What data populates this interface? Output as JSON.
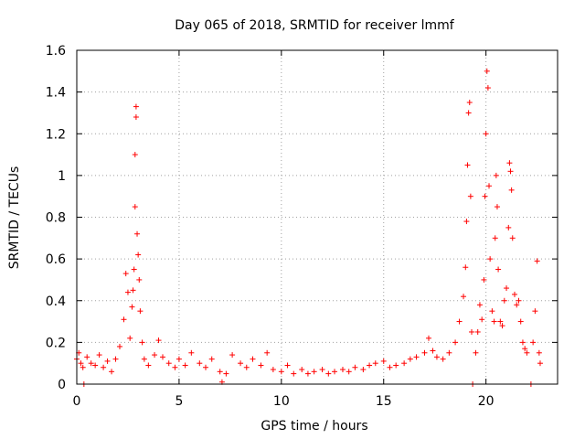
{
  "chart_data": {
    "type": "scatter",
    "title": "Day 065 of 2018, SRMTID for receiver lmmf",
    "xlabel": "GPS time / hours",
    "ylabel": "SRMTID / TECUs",
    "xlim": [
      0,
      23.5
    ],
    "ylim": [
      0,
      1.6
    ],
    "x_ticks": [
      0,
      5,
      10,
      15,
      20
    ],
    "x_tick_labels": [
      "0",
      "5",
      "10",
      "15",
      "20"
    ],
    "y_ticks": [
      0,
      0.2,
      0.4,
      0.6,
      0.8,
      1.0,
      1.2,
      1.4,
      1.6
    ],
    "y_tick_labels": [
      "0",
      "0.2",
      "0.4",
      "0.6",
      "0.8",
      "1",
      "1.2",
      "1.4",
      "1.6"
    ],
    "grid": true,
    "marker": "+",
    "marker_color": "#ff0000",
    "series": [
      {
        "name": "SRMTID",
        "points": [
          [
            0.0,
            0.12
          ],
          [
            0.1,
            0.15
          ],
          [
            0.2,
            0.1
          ],
          [
            0.3,
            0.08
          ],
          [
            0.35,
            0.0
          ],
          [
            0.5,
            0.13
          ],
          [
            0.7,
            0.1
          ],
          [
            0.9,
            0.09
          ],
          [
            1.1,
            0.14
          ],
          [
            1.3,
            0.08
          ],
          [
            1.5,
            0.11
          ],
          [
            1.7,
            0.06
          ],
          [
            1.9,
            0.12
          ],
          [
            2.1,
            0.18
          ],
          [
            2.3,
            0.31
          ],
          [
            2.4,
            0.53
          ],
          [
            2.5,
            0.44
          ],
          [
            2.6,
            0.22
          ],
          [
            2.7,
            0.37
          ],
          [
            2.75,
            0.45
          ],
          [
            2.8,
            0.55
          ],
          [
            2.85,
            0.85
          ],
          [
            2.85,
            1.1
          ],
          [
            2.9,
            1.28
          ],
          [
            2.9,
            1.33
          ],
          [
            2.95,
            0.72
          ],
          [
            3.0,
            0.62
          ],
          [
            3.05,
            0.5
          ],
          [
            3.1,
            0.35
          ],
          [
            3.2,
            0.2
          ],
          [
            3.3,
            0.12
          ],
          [
            3.5,
            0.09
          ],
          [
            3.8,
            0.14
          ],
          [
            4.0,
            0.21
          ],
          [
            4.2,
            0.13
          ],
          [
            4.5,
            0.1
          ],
          [
            4.8,
            0.08
          ],
          [
            5.0,
            0.12
          ],
          [
            5.3,
            0.09
          ],
          [
            5.6,
            0.15
          ],
          [
            6.0,
            0.1
          ],
          [
            6.3,
            0.08
          ],
          [
            6.6,
            0.12
          ],
          [
            7.0,
            0.06
          ],
          [
            7.1,
            0.01
          ],
          [
            7.3,
            0.05
          ],
          [
            7.6,
            0.14
          ],
          [
            8.0,
            0.1
          ],
          [
            8.3,
            0.08
          ],
          [
            8.6,
            0.12
          ],
          [
            9.0,
            0.09
          ],
          [
            9.3,
            0.15
          ],
          [
            9.6,
            0.07
          ],
          [
            10.0,
            0.06
          ],
          [
            10.3,
            0.09
          ],
          [
            10.6,
            0.05
          ],
          [
            11.0,
            0.07
          ],
          [
            11.3,
            0.05
          ],
          [
            11.6,
            0.06
          ],
          [
            12.0,
            0.07
          ],
          [
            12.3,
            0.05
          ],
          [
            12.6,
            0.06
          ],
          [
            13.0,
            0.07
          ],
          [
            13.3,
            0.06
          ],
          [
            13.6,
            0.08
          ],
          [
            14.0,
            0.07
          ],
          [
            14.3,
            0.09
          ],
          [
            14.6,
            0.1
          ],
          [
            15.0,
            0.11
          ],
          [
            15.3,
            0.08
          ],
          [
            15.6,
            0.09
          ],
          [
            16.0,
            0.1
          ],
          [
            16.3,
            0.12
          ],
          [
            16.6,
            0.13
          ],
          [
            17.0,
            0.15
          ],
          [
            17.2,
            0.22
          ],
          [
            17.4,
            0.16
          ],
          [
            17.6,
            0.13
          ],
          [
            17.9,
            0.12
          ],
          [
            18.2,
            0.15
          ],
          [
            18.5,
            0.2
          ],
          [
            18.7,
            0.3
          ],
          [
            18.9,
            0.42
          ],
          [
            19.0,
            0.56
          ],
          [
            19.05,
            0.78
          ],
          [
            19.1,
            1.05
          ],
          [
            19.15,
            1.3
          ],
          [
            19.2,
            1.35
          ],
          [
            19.25,
            0.9
          ],
          [
            19.3,
            0.25
          ],
          [
            19.35,
            0.0
          ],
          [
            19.5,
            0.15
          ],
          [
            19.6,
            0.25
          ],
          [
            19.7,
            0.38
          ],
          [
            19.8,
            0.31
          ],
          [
            19.9,
            0.5
          ],
          [
            19.95,
            0.9
          ],
          [
            20.0,
            1.2
          ],
          [
            20.05,
            1.5
          ],
          [
            20.1,
            1.42
          ],
          [
            20.15,
            0.95
          ],
          [
            20.2,
            0.6
          ],
          [
            20.3,
            0.35
          ],
          [
            20.4,
            0.3
          ],
          [
            20.45,
            0.7
          ],
          [
            20.5,
            1.0
          ],
          [
            20.55,
            0.85
          ],
          [
            20.6,
            0.55
          ],
          [
            20.7,
            0.3
          ],
          [
            20.8,
            0.28
          ],
          [
            20.9,
            0.4
          ],
          [
            21.0,
            0.46
          ],
          [
            21.1,
            0.75
          ],
          [
            21.15,
            1.06
          ],
          [
            21.2,
            1.02
          ],
          [
            21.25,
            0.93
          ],
          [
            21.3,
            0.7
          ],
          [
            21.4,
            0.43
          ],
          [
            21.5,
            0.38
          ],
          [
            21.6,
            0.4
          ],
          [
            21.7,
            0.3
          ],
          [
            21.8,
            0.2
          ],
          [
            21.9,
            0.17
          ],
          [
            22.0,
            0.15
          ],
          [
            22.2,
            0.0
          ],
          [
            22.3,
            0.2
          ],
          [
            22.4,
            0.35
          ],
          [
            22.5,
            0.59
          ],
          [
            22.6,
            0.15
          ],
          [
            22.65,
            0.1
          ]
        ]
      }
    ]
  }
}
